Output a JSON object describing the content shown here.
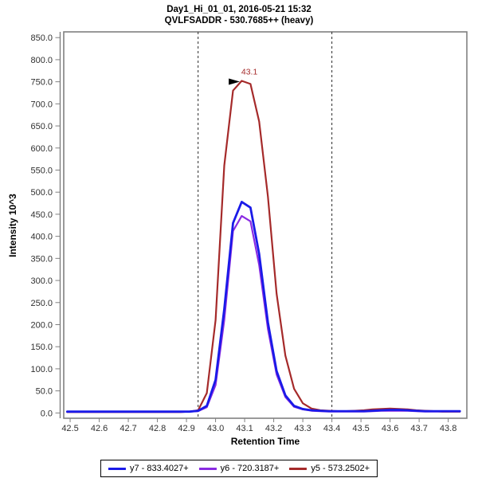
{
  "chart_data": {
    "type": "line",
    "title": "Day1_Hi_01_01, 2016-05-21 15:32",
    "subtitle": "QVLFSADDR - 530.7685++ (heavy)",
    "xlabel": "Retention Time",
    "ylabel": "Intensity 10^3",
    "xlim": [
      42.478,
      43.864
    ],
    "ylim": [
      -12,
      863
    ],
    "grid": false,
    "legend_position": "bottom",
    "x_ticks": [
      42.5,
      42.6,
      42.7,
      42.8,
      42.9,
      43.0,
      43.1,
      43.2,
      43.3,
      43.4,
      43.5,
      43.6,
      43.7,
      43.8
    ],
    "x_tick_labels": [
      "42.5",
      "42.6",
      "42.7",
      "42.8",
      "42.9",
      "43.0",
      "43.1",
      "43.2",
      "43.3",
      "43.4",
      "43.5",
      "43.6",
      "43.7",
      "43.8"
    ],
    "y_ticks": [
      0,
      50,
      100,
      150,
      200,
      250,
      300,
      350,
      400,
      450,
      500,
      550,
      600,
      650,
      700,
      750,
      800,
      850
    ],
    "y_tick_labels": [
      "0.0",
      "50.0",
      "100.0",
      "150.0",
      "200.0",
      "250.0",
      "300.0",
      "350.0",
      "400.0",
      "450.0",
      "500.0",
      "550.0",
      "600.0",
      "650.0",
      "700.0",
      "750.0",
      "800.0",
      "850.0"
    ],
    "x": [
      42.49,
      42.52,
      42.55,
      42.58,
      42.61,
      42.64,
      42.67,
      42.7,
      42.73,
      42.76,
      42.79,
      42.82,
      42.85,
      42.88,
      42.91,
      42.94,
      42.97,
      43.0,
      43.03,
      43.06,
      43.09,
      43.12,
      43.15,
      43.18,
      43.21,
      43.24,
      43.27,
      43.3,
      43.33,
      43.36,
      43.39,
      43.42,
      43.45,
      43.48,
      43.51,
      43.54,
      43.57,
      43.6,
      43.63,
      43.66,
      43.69,
      43.72,
      43.75,
      43.78,
      43.81,
      43.84
    ],
    "series": [
      {
        "name": "y7 - 833.4027+",
        "color": "#1a1ae8",
        "values": [
          3,
          3,
          3,
          3,
          3,
          3,
          3,
          3,
          3,
          3,
          3,
          3,
          3,
          3,
          3,
          5,
          16,
          75,
          235,
          430,
          478,
          465,
          360,
          205,
          95,
          40,
          16,
          9,
          6,
          5,
          4,
          4,
          4,
          4,
          4,
          5,
          6,
          7,
          7,
          6,
          5,
          4,
          4,
          4,
          4,
          4
        ]
      },
      {
        "name": "y6 - 720.3187+",
        "color": "#8a2be2",
        "values": [
          2,
          2,
          2,
          2,
          2,
          2,
          2,
          2,
          2,
          2,
          2,
          2,
          2,
          2,
          3,
          4,
          13,
          63,
          210,
          412,
          446,
          434,
          335,
          190,
          87,
          36,
          14,
          8,
          5,
          4,
          3,
          3,
          3,
          3,
          3,
          4,
          5,
          5,
          5,
          5,
          4,
          3,
          3,
          3,
          3,
          3
        ]
      },
      {
        "name": "y5 - 573.2502+",
        "color": "#a52a2a",
        "values": [
          2,
          2,
          2,
          2,
          2,
          2,
          2,
          2,
          2,
          2,
          2,
          2,
          2,
          2,
          3,
          6,
          45,
          210,
          560,
          730,
          752,
          745,
          660,
          490,
          270,
          130,
          55,
          22,
          10,
          6,
          5,
          4,
          4,
          5,
          6,
          8,
          9,
          10,
          9,
          8,
          6,
          5,
          4,
          3,
          3,
          3
        ]
      }
    ],
    "integration_boundaries": [
      42.94,
      43.4
    ],
    "peak_annotation": {
      "text": "43.1",
      "x": 43.1,
      "y": 752
    }
  },
  "colors": {
    "background": "#ffffff",
    "plot_border": "#808080",
    "tick": "#808080",
    "tick_label": "#303030",
    "boundary_line": "#2a2a2a",
    "annotation_arrow": "#000000",
    "legend_border": "#000000"
  }
}
